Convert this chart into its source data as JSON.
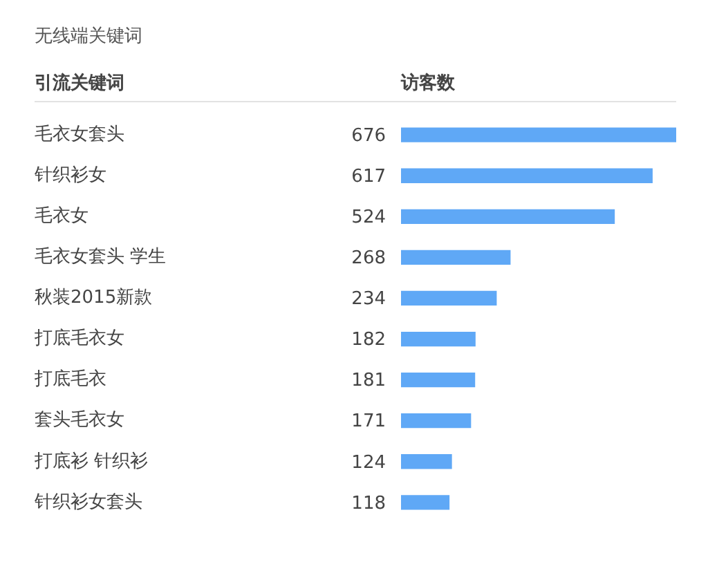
{
  "chart_data": {
    "type": "bar",
    "orientation": "horizontal",
    "title": "无线端关键词",
    "ylabel": "引流关键词",
    "xlabel": "访客数",
    "categories": [
      "毛衣女套头",
      "针织衫女",
      "毛衣女",
      "毛衣女套头 学生",
      "秋装2015新款",
      "打底毛衣女",
      "打底毛衣",
      "套头毛衣女",
      "打底衫 针织衫",
      "针织衫女套头"
    ],
    "values": [
      676,
      617,
      524,
      268,
      234,
      182,
      181,
      171,
      124,
      118
    ],
    "color": "#5fa8f6",
    "xlim": [
      0,
      676
    ],
    "data_labels": true,
    "tick_labels": "y"
  }
}
